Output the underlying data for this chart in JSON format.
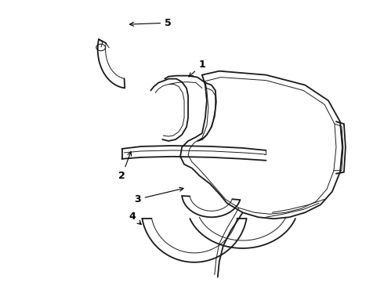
{
  "bg_color": "#ffffff",
  "line_color": "#1a1a1a",
  "lw_main": 1.3,
  "lw_thin": 0.7,
  "lw_med": 1.0,
  "figsize": [
    4.9,
    3.6
  ],
  "dpi": 100
}
